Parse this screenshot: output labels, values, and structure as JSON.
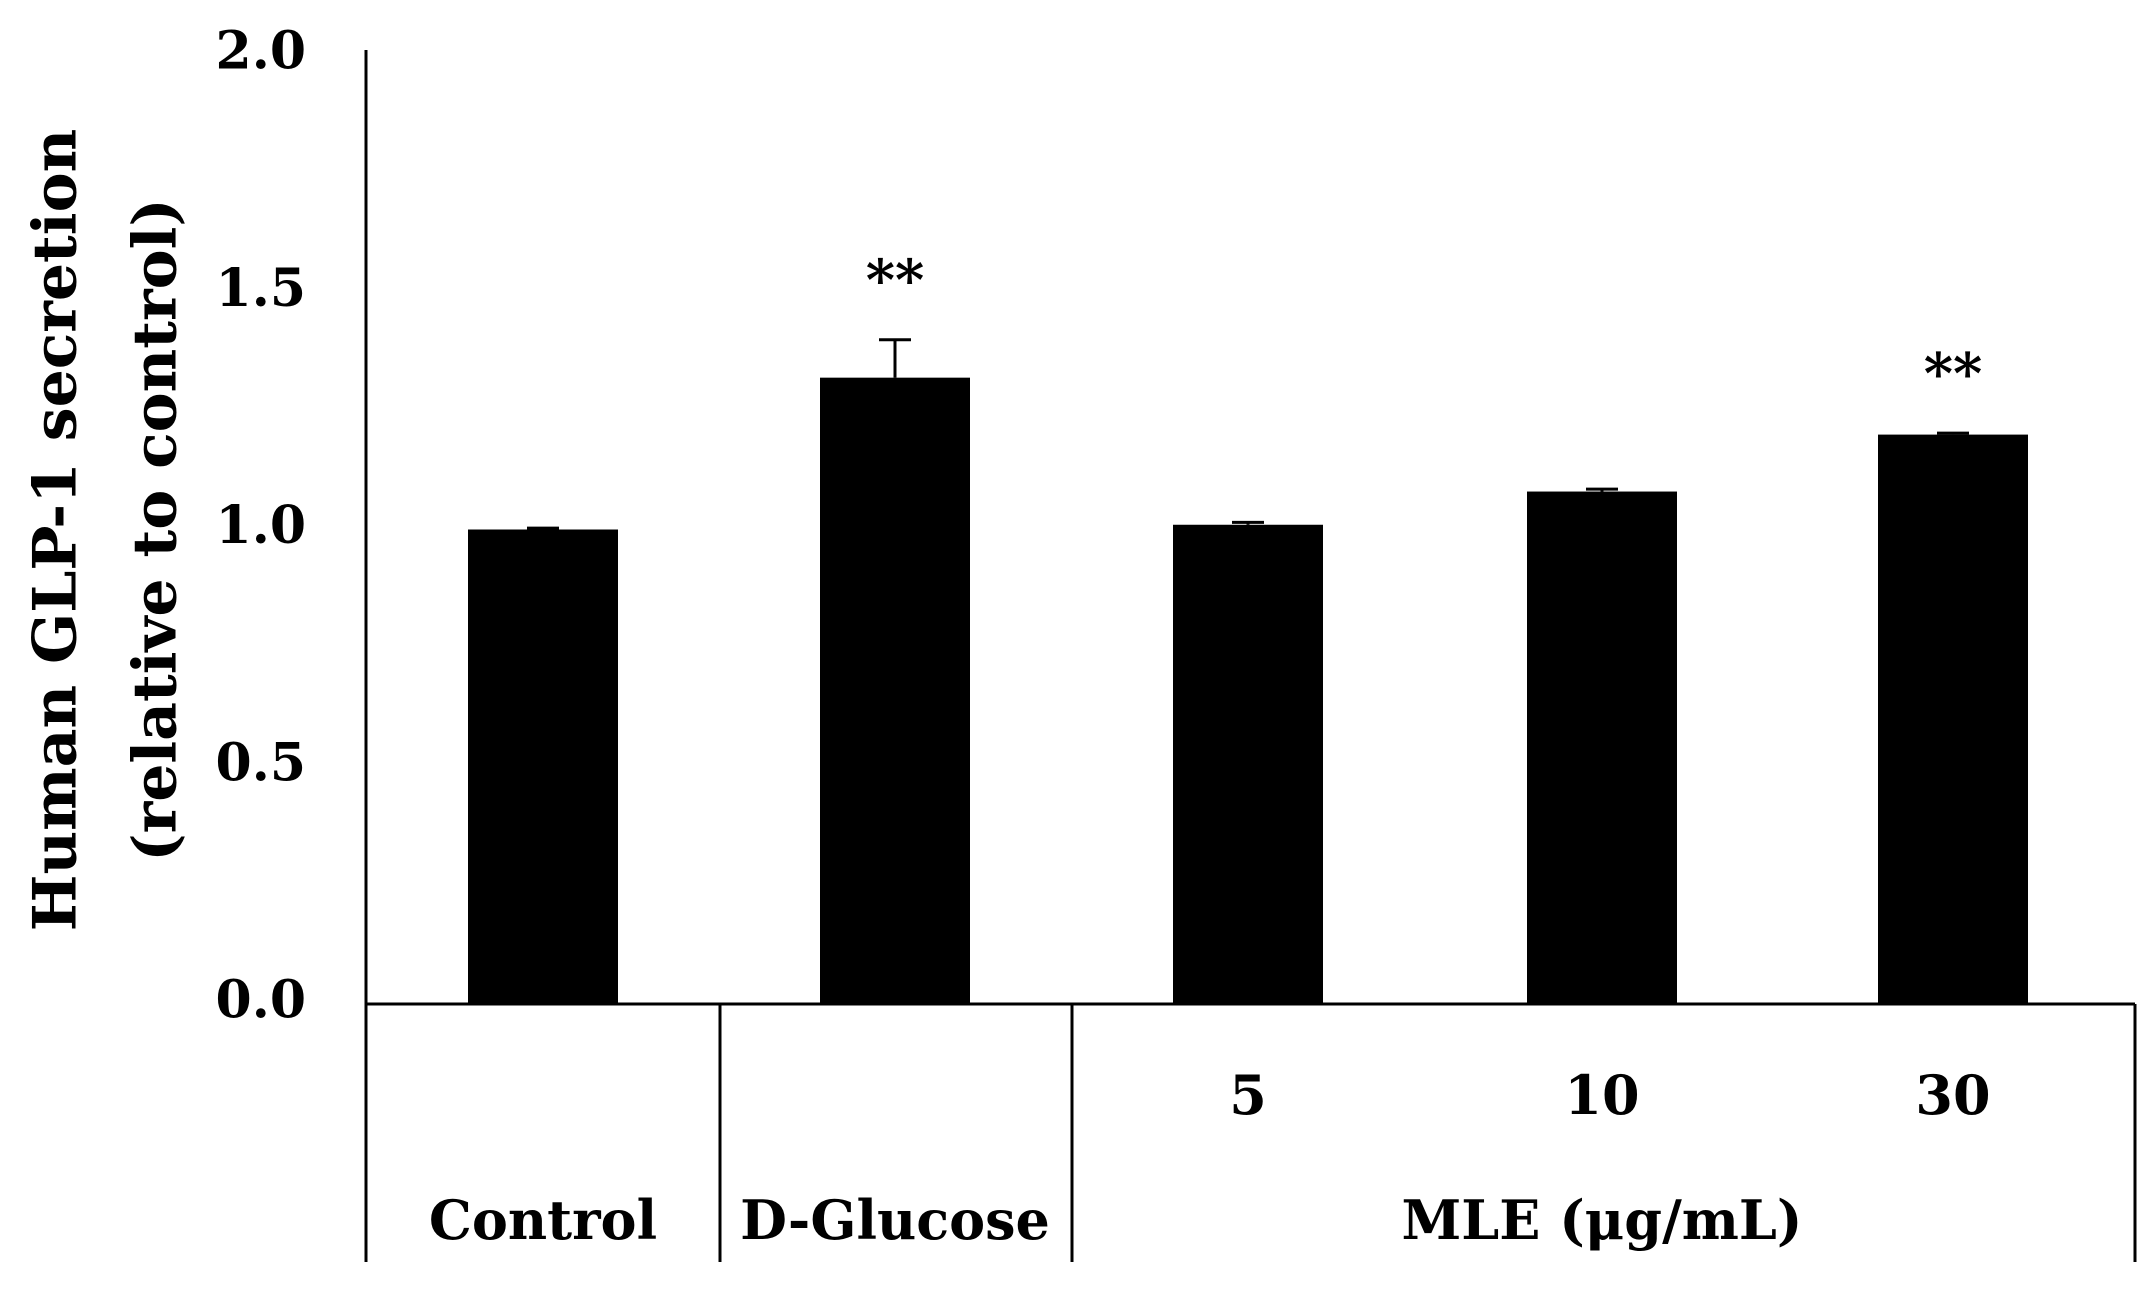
{
  "chart_data": {
    "type": "bar",
    "title": "",
    "ylabel_lines": [
      "Human GLP-1 secretion",
      "(relative to control)"
    ],
    "ylim": [
      0,
      2.0
    ],
    "yticks": [
      "0.0",
      "0.5",
      "1.0",
      "1.5",
      "2.0"
    ],
    "ytick_values": [
      0,
      0.5,
      1.0,
      1.5,
      2.0
    ],
    "grid": false,
    "legend": "none",
    "bar_color": "#000000",
    "categories": [
      "Control",
      "D-Glucose",
      "5",
      "10",
      "30"
    ],
    "values": [
      1.0,
      1.32,
      1.01,
      1.08,
      1.2
    ],
    "errors": [
      0.003,
      0.08,
      0.005,
      0.005,
      0.003
    ],
    "significance": [
      "",
      "**",
      "",
      "",
      "**"
    ],
    "group_labels": [
      "Control",
      "D-Glucose",
      "MLE (μg/mL)"
    ]
  }
}
